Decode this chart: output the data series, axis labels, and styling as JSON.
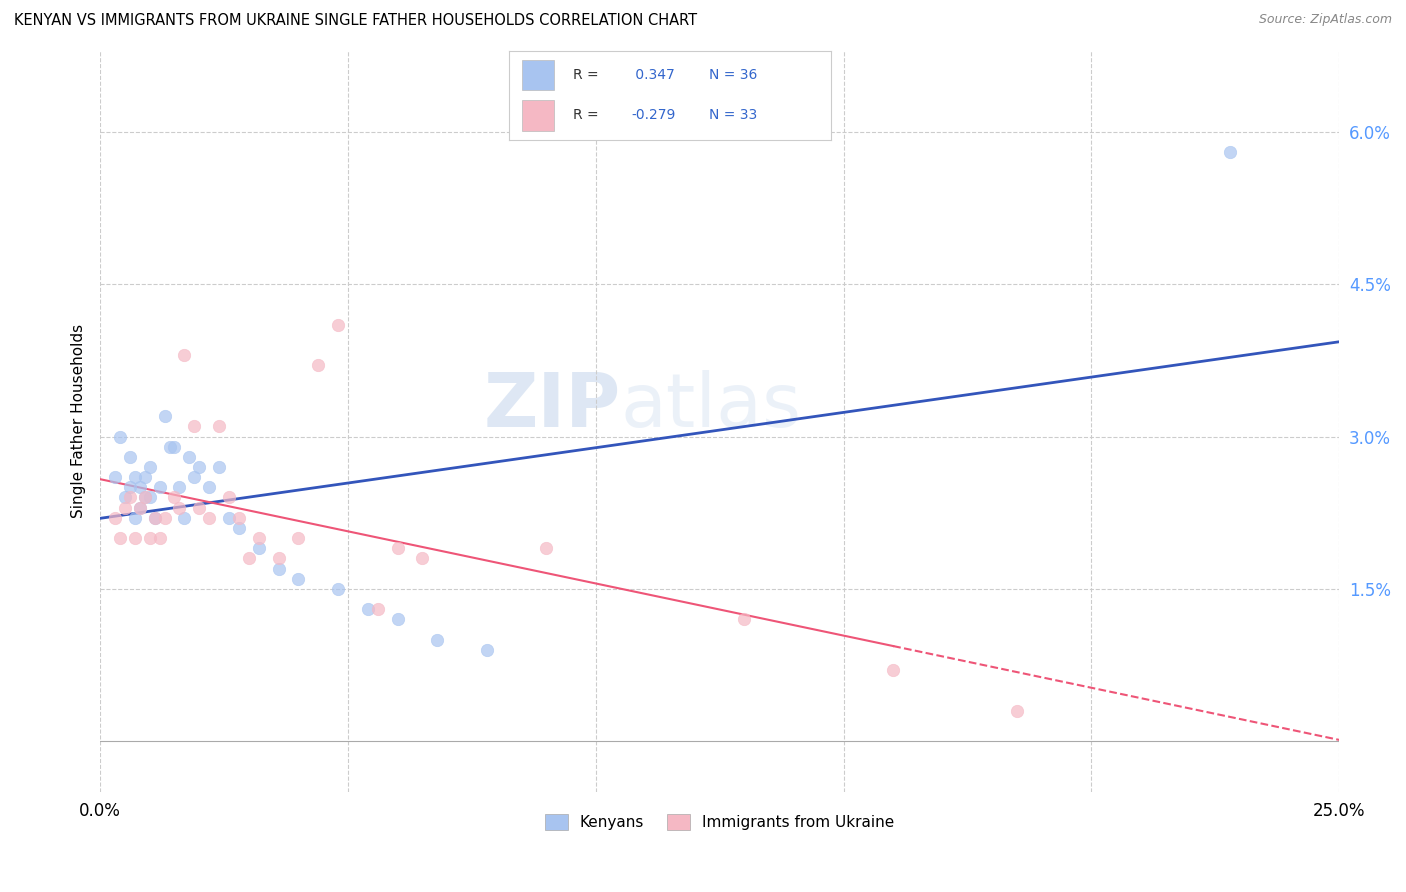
{
  "title": "KENYAN VS IMMIGRANTS FROM UKRAINE SINGLE FATHER HOUSEHOLDS CORRELATION CHART",
  "source": "Source: ZipAtlas.com",
  "ylabel": "Single Father Households",
  "xlim": [
    0.0,
    0.25
  ],
  "ylim": [
    -0.005,
    0.068
  ],
  "xticks": [
    0.0,
    0.05,
    0.1,
    0.15,
    0.2,
    0.25
  ],
  "xticklabels": [
    "0.0%",
    "",
    "",
    "",
    "",
    "25.0%"
  ],
  "yticks": [
    0.015,
    0.03,
    0.045,
    0.06
  ],
  "yticklabels": [
    "1.5%",
    "3.0%",
    "4.5%",
    "6.0%"
  ],
  "kenyan_color": "#a8c4f0",
  "ukraine_color": "#f5b8c4",
  "kenyan_line_color": "#3355bb",
  "ukraine_line_color": "#ee5577",
  "kenyan_R": 0.347,
  "kenyan_N": 36,
  "ukraine_R": -0.279,
  "ukraine_N": 33,
  "legend_label_1": "Kenyans",
  "legend_label_2": "Immigrants from Ukraine",
  "watermark_zip": "ZIP",
  "watermark_atlas": "atlas",
  "kenyan_x": [
    0.003,
    0.004,
    0.005,
    0.006,
    0.006,
    0.007,
    0.007,
    0.008,
    0.008,
    0.009,
    0.009,
    0.01,
    0.01,
    0.011,
    0.012,
    0.013,
    0.014,
    0.015,
    0.016,
    0.017,
    0.018,
    0.019,
    0.02,
    0.022,
    0.024,
    0.026,
    0.028,
    0.032,
    0.036,
    0.04,
    0.048,
    0.054,
    0.06,
    0.068,
    0.078,
    0.228
  ],
  "kenyan_y": [
    0.026,
    0.03,
    0.024,
    0.028,
    0.025,
    0.026,
    0.022,
    0.025,
    0.023,
    0.026,
    0.024,
    0.027,
    0.024,
    0.022,
    0.025,
    0.032,
    0.029,
    0.029,
    0.025,
    0.022,
    0.028,
    0.026,
    0.027,
    0.025,
    0.027,
    0.022,
    0.021,
    0.019,
    0.017,
    0.016,
    0.015,
    0.013,
    0.012,
    0.01,
    0.009,
    0.058
  ],
  "ukraine_x": [
    0.003,
    0.004,
    0.005,
    0.006,
    0.007,
    0.008,
    0.009,
    0.01,
    0.011,
    0.012,
    0.013,
    0.015,
    0.016,
    0.017,
    0.019,
    0.02,
    0.022,
    0.024,
    0.026,
    0.028,
    0.03,
    0.032,
    0.036,
    0.04,
    0.044,
    0.048,
    0.056,
    0.06,
    0.065,
    0.09,
    0.13,
    0.16,
    0.185
  ],
  "ukraine_y": [
    0.022,
    0.02,
    0.023,
    0.024,
    0.02,
    0.023,
    0.024,
    0.02,
    0.022,
    0.02,
    0.022,
    0.024,
    0.023,
    0.038,
    0.031,
    0.023,
    0.022,
    0.031,
    0.024,
    0.022,
    0.018,
    0.02,
    0.018,
    0.02,
    0.037,
    0.041,
    0.013,
    0.019,
    0.018,
    0.019,
    0.012,
    0.007,
    0.003
  ]
}
